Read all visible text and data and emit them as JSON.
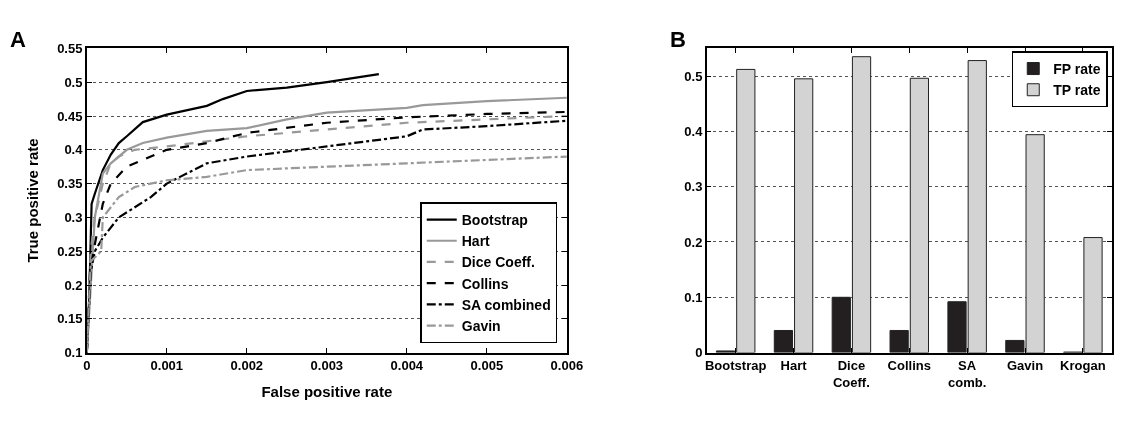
{
  "chart_data": [
    {
      "type": "line",
      "title": "A",
      "xlabel": "False positive rate",
      "ylabel": "True positive rate",
      "xlim": [
        0,
        0.006
      ],
      "xticks": [
        0,
        0.001,
        0.002,
        0.003,
        0.004,
        0.005,
        0.006
      ],
      "ylim": [
        0.1,
        0.55
      ],
      "yticks": [
        0.1,
        0.15,
        0.2,
        0.25,
        0.3,
        0.35,
        0.4,
        0.45,
        0.5,
        0.55
      ],
      "grid": "y",
      "legend": "bottom right",
      "marker": "none",
      "series": [
        {
          "name": "Bootstrap",
          "color": "#000000",
          "line_style": "solid",
          "x": [
            0,
            3e-05,
            6e-05,
            0.0001,
            0.0002,
            0.0003,
            0.0004,
            0.0005,
            0.0007,
            0.001,
            0.0015,
            0.0017,
            0.002,
            0.0025,
            0.003,
            0.00365
          ],
          "values": [
            0.1,
            0.18,
            0.32,
            0.335,
            0.37,
            0.393,
            0.41,
            0.42,
            0.441,
            0.452,
            0.465,
            0.475,
            0.487,
            0.492,
            0.5,
            0.512
          ]
        },
        {
          "name": "Hart",
          "color": "#999999",
          "line_style": "solid",
          "x": [
            0,
            5e-05,
            0.0001,
            0.0002,
            0.0003,
            0.0005,
            0.0007,
            0.001,
            0.0015,
            0.002,
            0.0025,
            0.003,
            0.004,
            0.0042,
            0.005,
            0.006
          ],
          "values": [
            0.1,
            0.2,
            0.3,
            0.365,
            0.38,
            0.4,
            0.41,
            0.418,
            0.428,
            0.432,
            0.445,
            0.455,
            0.462,
            0.466,
            0.472,
            0.477
          ]
        },
        {
          "name": "Dice Coeff.",
          "color": "#999999",
          "line_style": "dashed",
          "x": [
            0,
            5e-05,
            0.0001,
            0.0002,
            0.0003,
            0.0004,
            0.0006,
            0.001,
            0.002,
            0.003,
            0.004,
            0.005,
            0.006
          ],
          "values": [
            0.1,
            0.25,
            0.3,
            0.35,
            0.38,
            0.39,
            0.4,
            0.405,
            0.42,
            0.43,
            0.44,
            0.445,
            0.45
          ]
        },
        {
          "name": "Collins",
          "color": "#000000",
          "line_style": "dashed",
          "x": [
            0,
            4e-05,
            0.0001,
            0.0002,
            0.0003,
            0.0005,
            0.0008,
            0.001,
            0.0015,
            0.002,
            0.003,
            0.004,
            0.005,
            0.006
          ],
          "values": [
            0.1,
            0.22,
            0.26,
            0.32,
            0.35,
            0.375,
            0.39,
            0.4,
            0.41,
            0.425,
            0.44,
            0.448,
            0.453,
            0.456
          ]
        },
        {
          "name": "SA combined",
          "color": "#000000",
          "line_style": "dashdot",
          "x": [
            0,
            5e-05,
            0.0001,
            0.0002,
            0.0004,
            0.0006,
            0.0008,
            0.001,
            0.0015,
            0.002,
            0.003,
            0.004,
            0.0042,
            0.005,
            0.006
          ],
          "values": [
            0.1,
            0.22,
            0.25,
            0.27,
            0.3,
            0.315,
            0.33,
            0.35,
            0.38,
            0.39,
            0.405,
            0.42,
            0.43,
            0.435,
            0.443
          ]
        },
        {
          "name": "Gavin",
          "color": "#999999",
          "line_style": "dashdot",
          "x": [
            0,
            5e-05,
            0.00018,
            0.0002,
            0.0004,
            0.0006,
            0.001,
            0.0015,
            0.002,
            0.003,
            0.004,
            0.005,
            0.006
          ],
          "values": [
            0.1,
            0.235,
            0.25,
            0.3,
            0.33,
            0.345,
            0.355,
            0.36,
            0.37,
            0.375,
            0.38,
            0.385,
            0.39
          ]
        }
      ]
    },
    {
      "type": "bar",
      "title": "B",
      "categories": [
        "Bootstrap",
        "Hart",
        "Dice Coeff.",
        "Collins",
        "SA comb.",
        "Gavin",
        "Krogan"
      ],
      "ylim": [
        0,
        0.55
      ],
      "yticks": [
        0,
        0.1,
        0.2,
        0.3,
        0.4,
        0.5
      ],
      "grid": "y",
      "legend": "top right",
      "series": [
        {
          "name": "FP rate",
          "color": "#231f20",
          "values": [
            0.003,
            0.04,
            0.1,
            0.04,
            0.092,
            0.022,
            0.001
          ]
        },
        {
          "name": "TP rate",
          "color": "#d3d3d3",
          "values": [
            0.512,
            0.495,
            0.535,
            0.496,
            0.528,
            0.394,
            0.208
          ]
        }
      ]
    }
  ]
}
